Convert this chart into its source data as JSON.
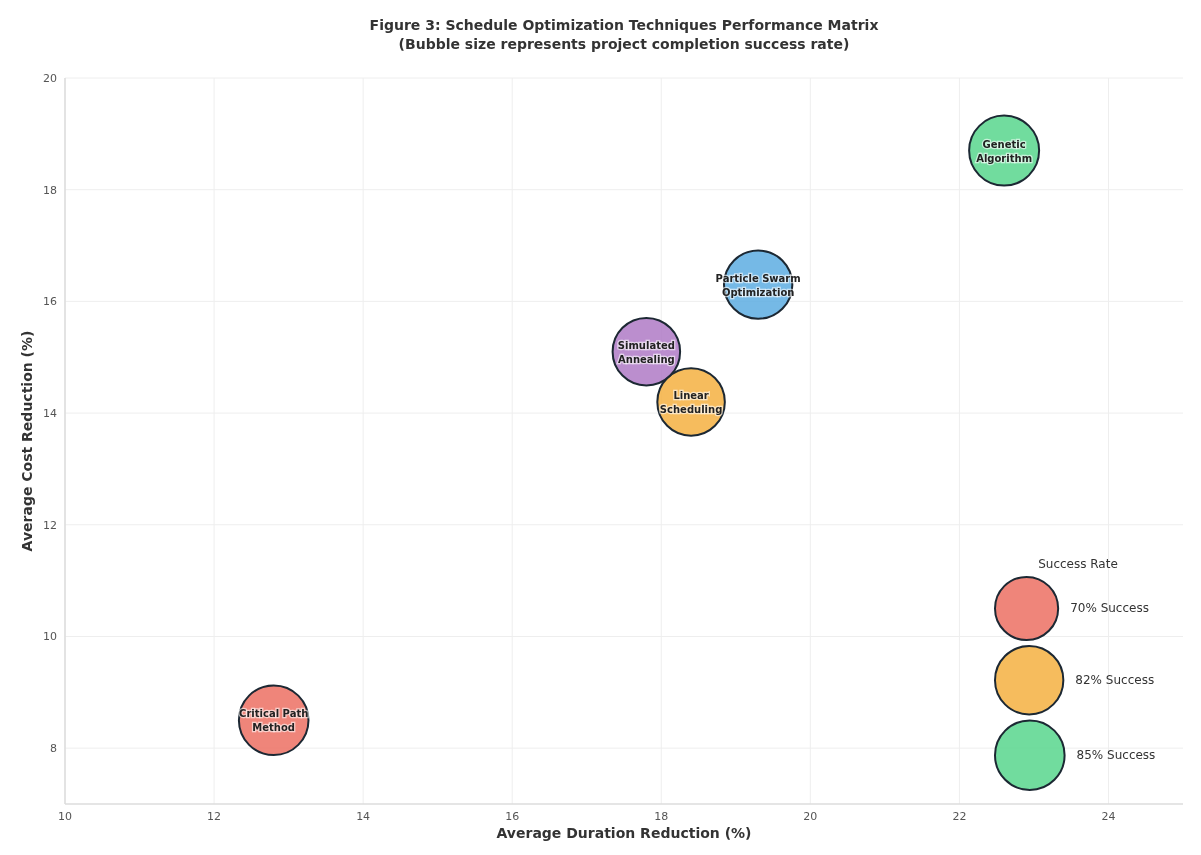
{
  "chart_data": {
    "type": "bubble",
    "title": "Figure 3: Schedule Optimization Techniques Performance Matrix",
    "subtitle": "(Bubble size represents project completion success rate)",
    "xlabel": "Average Duration Reduction (%)",
    "ylabel": "Average Cost Reduction (%)",
    "series": [
      {
        "x": [
          12.8,
          18.4,
          22.6,
          17.8,
          19.3
        ],
        "values": [
          8.5,
          14.2,
          18.7,
          15.1,
          16.3
        ],
        "sizes": [
          85,
          80,
          86,
          80,
          82
        ],
        "colors": [
          "#ec7063",
          "#f5b041",
          "#58d68d",
          "#af7ac5",
          "#5dade2"
        ]
      }
    ],
    "annotations": [
      {
        "text": "Critical Path\nMethod",
        "x": 12.8,
        "y": 8.5
      },
      {
        "text": "Linear\nScheduling",
        "x": 18.4,
        "y": 14.2
      },
      {
        "text": "Genetic\nAlgorithm",
        "x": 22.6,
        "y": 18.7
      },
      {
        "text": "Simulated\nAnnealing",
        "x": 17.8,
        "y": 15.1
      },
      {
        "text": "Particle Swarm\nOptimization",
        "x": 19.3,
        "y": 16.3
      }
    ],
    "legend_title": "Success Rate",
    "size_legend": [
      {
        "value": 70,
        "label": "70% Success"
      },
      {
        "value": 82,
        "label": "82% Success"
      },
      {
        "value": 85,
        "label": "85% Success"
      }
    ],
    "xlim": [
      10,
      25
    ],
    "ylim": [
      7,
      20
    ],
    "xticks": [
      10,
      12,
      14,
      16,
      18,
      20,
      22,
      24
    ],
    "yticks": [
      8,
      10,
      12,
      14,
      16,
      18,
      20
    ],
    "grid": true
  }
}
